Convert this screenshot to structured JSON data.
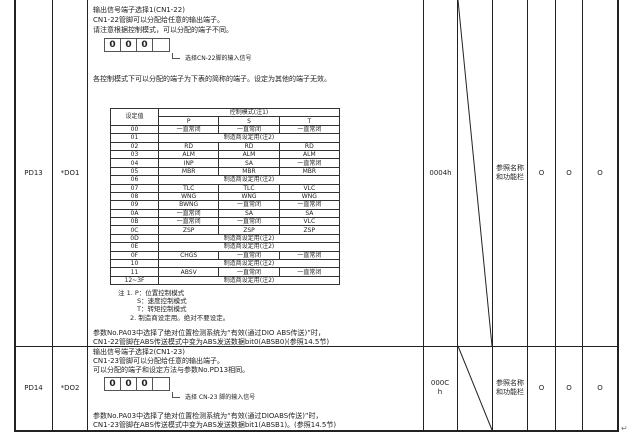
{
  "rows": [
    {
      "param": "PD13",
      "symbol": "*DO1",
      "initial": "0004h",
      "unit_ref": "参照名称和功能栏",
      "p": "O",
      "s": "O",
      "t": "O",
      "desc": {
        "title": "输出信号端子选择1(CN1-22)",
        "line1": "CN1-22管脚可以分配给任意的输出端子。",
        "line2": "请注意根据控制模式，可以分配的端子不同。",
        "digits": [
          "0",
          "0",
          "0",
          ""
        ],
        "pointer_label": "选择CN-22脚的输入信号",
        "intro": "各控制模式下可以分配的端子为下表的简称的端子。设定为其他的端子无效。",
        "table": {
          "h_setting": "设定值",
          "h_mode": "控制模式(注1)",
          "h_p": "P",
          "h_s": "S",
          "h_t": "T",
          "rows": [
            [
              "00",
              "一直常闭",
              "一直常闭",
              "一直常闭"
            ],
            [
              "01",
              "制造商设定用(注2)"
            ],
            [
              "02",
              "RD",
              "RD",
              "RD"
            ],
            [
              "03",
              "ALM",
              "ALM",
              "ALM"
            ],
            [
              "04",
              "INP",
              "SA",
              "一直常闭"
            ],
            [
              "05",
              "MBR",
              "MBR",
              "MBR"
            ],
            [
              "06",
              "制造商设定用(注2)"
            ],
            [
              "07",
              "TLC",
              "TLC",
              "VLC"
            ],
            [
              "08",
              "WNG",
              "WNG",
              "WNG"
            ],
            [
              "09",
              "BWNG",
              "一直常闭",
              "一直常闭"
            ],
            [
              "0A",
              "一直常闭",
              "SA",
              "SA"
            ],
            [
              "0B",
              "一直常闭",
              "一直常闭",
              "VLC"
            ],
            [
              "0C",
              "ZSP",
              "ZSP",
              "ZSP"
            ],
            [
              "0D",
              "制造商设定用(注2)"
            ],
            [
              "0E",
              "制造商设定用(注2)"
            ],
            [
              "0F",
              "CHGS",
              "一直常闭",
              "一直常闭"
            ],
            [
              "10",
              "制造商设定用(注2)"
            ],
            [
              "11",
              "ABSV",
              "一直常闭",
              "一直常闭"
            ],
            [
              "12~3F",
              "制造商设定用(注2)"
            ]
          ]
        },
        "notes": [
          "注 1. P：位置控制模式",
          "S：速度控制模式",
          "T：转矩控制模式",
          "2. 制造商设定用。绝对不要设定。"
        ],
        "abs1": "参数No.PA03中选择了绝对位置检测系统为“有效(通过DIO ABS传送)”时，",
        "abs2": "CN1-22管脚在ABS传送模式中变为ABS发送数据bit0(ABSB0)(参照14.5节)"
      }
    },
    {
      "param": "PD14",
      "symbol": "*DO2",
      "initial": "000Ch",
      "unit_ref": "参照名称和功能栏",
      "p": "O",
      "s": "O",
      "t": "O",
      "desc": {
        "title": "输出信号端子选择2(CN1-23)",
        "line1": "CN1-23管脚可以分配给任意的输出端子。",
        "line2": "可以分配的端子和设定方法与参数No.PD13相同。",
        "digits": [
          "0",
          "0",
          "0",
          ""
        ],
        "pointer_label": "选择 CN-23 脚的输入信号",
        "abs1": "参数No.PA03中选择了绝对位置检测系统为“有效(通过DIOABS传送)”时，",
        "abs2": "CN1-23管脚在ABS传送模式中变为ABS发送数据bit1(ABSB1)。(参照14.5节)"
      }
    }
  ],
  "return_mark": "↵"
}
